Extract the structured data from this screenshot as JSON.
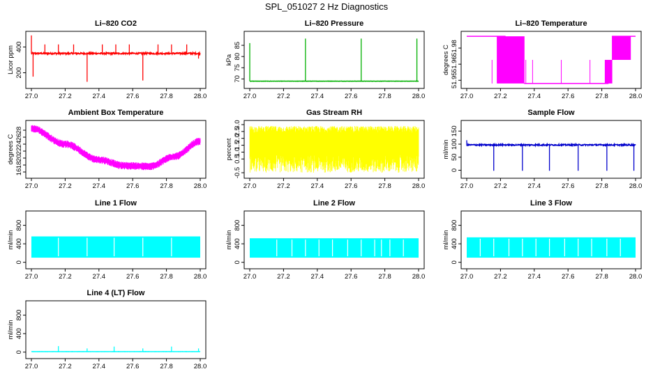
{
  "title": "SPL_051027  2 Hz Diagnostics",
  "chart_data": [
    {
      "type": "line",
      "title": "Li–820 CO2",
      "ylabel": "Licor ppm",
      "color": "#ff0000",
      "xlim": [
        27.0,
        28.0
      ],
      "ylim": [
        100,
        500
      ],
      "yticks": [
        "200",
        "400"
      ],
      "ytick_values": [
        200,
        400
      ],
      "xticks": [
        "27.0",
        "27.2",
        "27.4",
        "27.6",
        "27.8",
        "28.0"
      ],
      "xtick_values": [
        27.0,
        27.2,
        27.4,
        27.6,
        27.8,
        28.0
      ],
      "pattern": "flat",
      "base": 350,
      "noise": 12,
      "spikes": [
        {
          "x": 27.0,
          "y": 490
        },
        {
          "x": 27.01,
          "y": 170
        },
        {
          "x": 27.08,
          "y": 420
        },
        {
          "x": 27.16,
          "y": 420
        },
        {
          "x": 27.25,
          "y": 420
        },
        {
          "x": 27.33,
          "y": 130
        },
        {
          "x": 27.42,
          "y": 420
        },
        {
          "x": 27.5,
          "y": 420
        },
        {
          "x": 27.58,
          "y": 420
        },
        {
          "x": 27.66,
          "y": 140
        },
        {
          "x": 27.75,
          "y": 420
        },
        {
          "x": 27.83,
          "y": 420
        },
        {
          "x": 27.92,
          "y": 420
        },
        {
          "x": 27.99,
          "y": 310
        }
      ]
    },
    {
      "type": "line",
      "title": "Li–820 Pressure",
      "ylabel": "kPa",
      "color": "#00b000",
      "xlim": [
        27.0,
        28.0
      ],
      "ylim": [
        67,
        90
      ],
      "yticks": [
        "70",
        "75",
        "80",
        "85"
      ],
      "ytick_values": [
        70,
        75,
        80,
        85
      ],
      "xticks": [
        "27.0",
        "27.2",
        "27.4",
        "27.6",
        "27.8",
        "28.0"
      ],
      "xtick_values": [
        27.0,
        27.2,
        27.4,
        27.6,
        27.8,
        28.0
      ],
      "pattern": "flat",
      "base": 69,
      "noise": 0.1,
      "spikes": [
        {
          "x": 27.0,
          "y": 86
        },
        {
          "x": 27.33,
          "y": 88
        },
        {
          "x": 27.66,
          "y": 88
        },
        {
          "x": 27.99,
          "y": 88
        }
      ]
    },
    {
      "type": "line",
      "title": "Li–820 Temperature",
      "ylabel": "degrees C",
      "color": "#ff00ff",
      "xlim": [
        27.0,
        28.0
      ],
      "ylim": [
        51.945,
        51.993
      ],
      "yticks": [
        "51.95",
        "51.96",
        "51.98"
      ],
      "ytick_values": [
        51.95,
        51.965,
        51.98
      ],
      "xticks": [
        "27.0",
        "27.2",
        "27.4",
        "27.6",
        "27.8",
        "28.0"
      ],
      "xtick_values": [
        27.0,
        27.2,
        27.4,
        27.6,
        27.8,
        28.0
      ],
      "pattern": "temp"
    },
    {
      "type": "line",
      "title": "Ambient Box Temperature",
      "ylabel": "degrees C",
      "color": "#ff00ff",
      "xlim": [
        27.0,
        28.0
      ],
      "ylim": [
        15,
        30
      ],
      "yticks": [
        "16",
        "18",
        "20",
        "22",
        "24",
        "26",
        "28"
      ],
      "ytick_values": [
        16,
        18,
        20,
        22,
        24,
        26,
        28
      ],
      "xticks": [
        "27.0",
        "27.2",
        "27.4",
        "27.6",
        "27.8",
        "28.0"
      ],
      "xtick_values": [
        27.0,
        27.2,
        27.4,
        27.6,
        27.8,
        28.0
      ],
      "pattern": "curve",
      "curve": [
        {
          "x": 27.0,
          "y": 28.5
        },
        {
          "x": 27.2,
          "y": 24
        },
        {
          "x": 27.4,
          "y": 19.5
        },
        {
          "x": 27.55,
          "y": 17.8
        },
        {
          "x": 27.7,
          "y": 17.6
        },
        {
          "x": 27.85,
          "y": 20.5
        },
        {
          "x": 28.0,
          "y": 24.8
        }
      ],
      "noise": 1.1
    },
    {
      "type": "line",
      "title": "Gas Stream RH",
      "ylabel": "percent",
      "color": "#ffff00",
      "xlim": [
        27.0,
        28.0
      ],
      "ylim": [
        -0.7,
        3.1
      ],
      "yticks": [
        "-0.5",
        "0.5",
        "1.0",
        "1.5",
        "2.0",
        "2.5",
        "3.0"
      ],
      "ytick_values": [
        -0.5,
        0.5,
        1.0,
        1.5,
        2.0,
        2.5,
        3.0
      ],
      "xticks": [
        "27.0",
        "27.2",
        "27.4",
        "27.6",
        "27.8",
        "28.0"
      ],
      "xtick_values": [
        27.0,
        27.2,
        27.4,
        27.6,
        27.8,
        28.0
      ],
      "pattern": "band",
      "low": [
        -0.5,
        0.8
      ],
      "high": [
        2.4,
        2.9
      ]
    },
    {
      "type": "line",
      "title": "Sample Flow",
      "ylabel": "ml/min",
      "color": "#0000cc",
      "xlim": [
        27.0,
        28.0
      ],
      "ylim": [
        -20,
        180
      ],
      "yticks": [
        "0",
        "50",
        "100",
        "150"
      ],
      "ytick_values": [
        0,
        50,
        100,
        150
      ],
      "xticks": [
        "27.0",
        "27.2",
        "27.4",
        "27.6",
        "27.8",
        "28.0"
      ],
      "xtick_values": [
        27.0,
        27.2,
        27.4,
        27.6,
        27.8,
        28.0
      ],
      "pattern": "flat",
      "base": 97,
      "noise": 5,
      "spikes": [
        {
          "x": 27.0,
          "y": 115
        },
        {
          "x": 27.16,
          "y": -2
        },
        {
          "x": 27.33,
          "y": -2
        },
        {
          "x": 27.49,
          "y": -2
        },
        {
          "x": 27.66,
          "y": -2
        },
        {
          "x": 27.83,
          "y": -2
        },
        {
          "x": 27.99,
          "y": -2
        }
      ]
    },
    {
      "type": "line",
      "title": "Line 1 Flow",
      "ylabel": "ml/min",
      "color": "#00ffff",
      "xlim": [
        27.0,
        28.0
      ],
      "ylim": [
        -80,
        1050
      ],
      "yticks": [
        "0",
        "400",
        "800"
      ],
      "ytick_values": [
        0,
        400,
        800
      ],
      "xticks": [
        "27.0",
        "27.2",
        "27.4",
        "27.6",
        "27.8",
        "28.0"
      ],
      "xtick_values": [
        27.0,
        27.2,
        27.4,
        27.6,
        27.8,
        28.0
      ],
      "pattern": "block",
      "low": 100,
      "high": 560,
      "gaps": [
        27.16,
        27.33,
        27.49,
        27.66,
        27.83
      ]
    },
    {
      "type": "line",
      "title": "Line 2 Flow",
      "ylabel": "ml/min",
      "color": "#00ffff",
      "xlim": [
        27.0,
        28.0
      ],
      "ylim": [
        -80,
        1050
      ],
      "yticks": [
        "0",
        "400",
        "800"
      ],
      "ytick_values": [
        0,
        400,
        800
      ],
      "xticks": [
        "27.0",
        "27.2",
        "27.4",
        "27.6",
        "27.8",
        "28.0"
      ],
      "xtick_values": [
        27.0,
        27.2,
        27.4,
        27.6,
        27.8,
        28.0
      ],
      "pattern": "block",
      "low": 100,
      "high": 520,
      "gaps": [
        27.16,
        27.25,
        27.33,
        27.41,
        27.49,
        27.58,
        27.66,
        27.74,
        27.78,
        27.83,
        27.91
      ]
    },
    {
      "type": "line",
      "title": "Line 3 Flow",
      "ylabel": "ml/min",
      "color": "#00ffff",
      "xlim": [
        27.0,
        28.0
      ],
      "ylim": [
        -80,
        1050
      ],
      "yticks": [
        "0",
        "400",
        "800"
      ],
      "ytick_values": [
        0,
        400,
        800
      ],
      "xticks": [
        "27.0",
        "27.2",
        "27.4",
        "27.6",
        "27.8",
        "28.0"
      ],
      "xtick_values": [
        27.0,
        27.2,
        27.4,
        27.6,
        27.8,
        28.0
      ],
      "pattern": "block",
      "low": 100,
      "high": 540,
      "gaps": [
        27.08,
        27.16,
        27.25,
        27.33,
        27.41,
        27.49,
        27.58,
        27.66,
        27.74,
        27.83,
        27.91
      ]
    },
    {
      "type": "line",
      "title": "Line 4 (LT) Flow",
      "ylabel": "ml/min",
      "color": "#00ffff",
      "xlim": [
        27.0,
        28.0
      ],
      "ylim": [
        -80,
        1050
      ],
      "yticks": [
        "0",
        "400",
        "800"
      ],
      "ytick_values": [
        0,
        400,
        800
      ],
      "xticks": [
        "27.0",
        "27.2",
        "27.4",
        "27.6",
        "27.8",
        "28.0"
      ],
      "xtick_values": [
        27.0,
        27.2,
        27.4,
        27.6,
        27.8,
        28.0
      ],
      "pattern": "flat",
      "base": 10,
      "noise": 3,
      "spikes": [
        {
          "x": 27.16,
          "y": 130
        },
        {
          "x": 27.33,
          "y": 80
        },
        {
          "x": 27.49,
          "y": 120
        },
        {
          "x": 27.66,
          "y": 80
        },
        {
          "x": 27.83,
          "y": 120
        },
        {
          "x": 27.99,
          "y": 80
        }
      ]
    }
  ]
}
